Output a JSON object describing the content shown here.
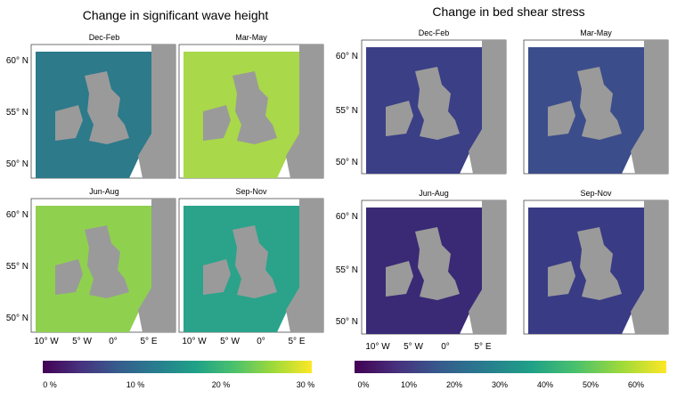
{
  "left": {
    "title": "Change in significant wave height",
    "panels": [
      {
        "label": "Dec-Feb",
        "sea": "#2c7a8a"
      },
      {
        "label": "Mar-May",
        "sea": "#a9d84a"
      },
      {
        "label": "Jun-Aug",
        "sea": "#8fd14f"
      },
      {
        "label": "Sep-Nov",
        "sea": "#2aa38a"
      }
    ],
    "lat_ticks": [
      "60° N",
      "55° N",
      "50° N"
    ],
    "lon_ticks": [
      "10° W",
      "5° W",
      "0°",
      "5° E"
    ],
    "colorbar": {
      "ticks": [
        "0 %",
        "10 %",
        "20 %",
        "30 %"
      ]
    }
  },
  "right": {
    "title": "Change in bed shear stress",
    "panels": [
      {
        "label": "Dec-Feb",
        "sea": "#3b3f86"
      },
      {
        "label": "Mar-May",
        "sea": "#3c4d8b"
      },
      {
        "label": "Jun-Aug",
        "sea": "#3a2a75"
      },
      {
        "label": "Sep-Nov",
        "sea": "#3a3b85"
      }
    ],
    "lat_ticks": [
      "60° N",
      "55° N",
      "50° N"
    ],
    "lon_ticks": [
      "10° W",
      "5° W",
      "0°",
      "5° E"
    ],
    "colorbar": {
      "ticks": [
        "0%",
        "10%",
        "20%",
        "30%",
        "40%",
        "50%",
        "60%"
      ]
    }
  },
  "colors": {
    "land": "#9a9a9a",
    "grid": "#eaeaea",
    "viridis": [
      "#440154",
      "#46327e",
      "#365c8d",
      "#277f8e",
      "#1fa187",
      "#4ac16d",
      "#a0da39",
      "#fde725"
    ]
  }
}
